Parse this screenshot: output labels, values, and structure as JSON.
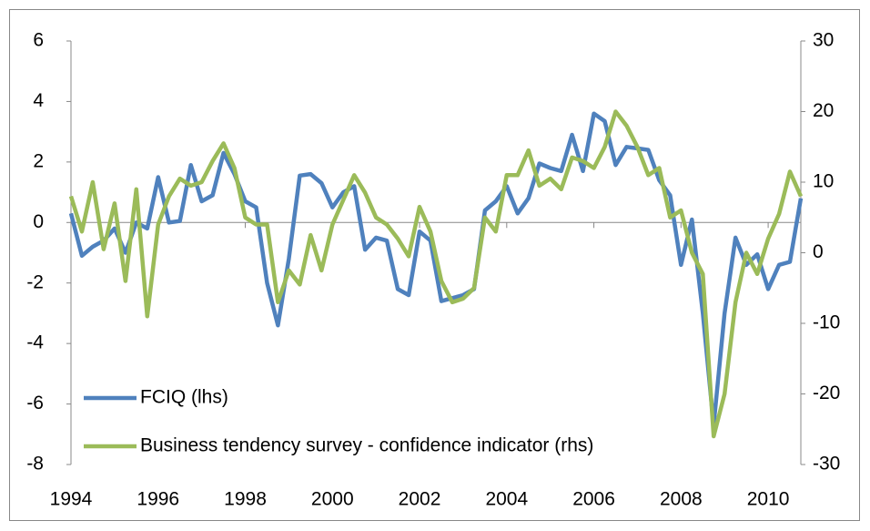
{
  "chart_data": {
    "type": "line",
    "x": [
      1994,
      1994.25,
      1994.5,
      1994.75,
      1995,
      1995.25,
      1995.5,
      1995.75,
      1996,
      1996.25,
      1996.5,
      1996.75,
      1997,
      1997.25,
      1997.5,
      1997.75,
      1998,
      1998.25,
      1998.5,
      1998.75,
      1999,
      1999.25,
      1999.5,
      1999.75,
      2000,
      2000.25,
      2000.5,
      2000.75,
      2001,
      2001.25,
      2001.5,
      2001.75,
      2002,
      2002.25,
      2002.5,
      2002.75,
      2003,
      2003.25,
      2003.5,
      2003.75,
      2004,
      2004.25,
      2004.5,
      2004.75,
      2005,
      2005.25,
      2005.5,
      2005.75,
      2006,
      2006.25,
      2006.5,
      2006.75,
      2007,
      2007.25,
      2007.5,
      2007.75,
      2008,
      2008.25,
      2008.5,
      2008.75,
      2009,
      2009.25,
      2009.5,
      2009.75,
      2010,
      2010.25,
      2010.5,
      2010.75
    ],
    "xlim": [
      1994,
      2010.75
    ],
    "xticks": [
      1994,
      1996,
      1998,
      2000,
      2002,
      2004,
      2006,
      2008,
      2010
    ],
    "ylim": [
      -8,
      6
    ],
    "yticks": [
      -8,
      -6,
      -4,
      -2,
      0,
      2,
      4,
      6
    ],
    "y2lim": [
      -30,
      30
    ],
    "y2ticks": [
      -30,
      -20,
      -10,
      0,
      10,
      20,
      30
    ],
    "series": [
      {
        "name": "FCIQ (lhs)",
        "color": "#4f81bd",
        "values": [
          0.3,
          -1.1,
          -0.8,
          -0.6,
          -0.2,
          -1.0,
          0.0,
          -0.2,
          1.5,
          0.0,
          0.05,
          1.9,
          0.7,
          0.9,
          2.3,
          1.6,
          0.7,
          0.5,
          -2.0,
          -3.4,
          -1.2,
          1.55,
          1.6,
          1.3,
          0.5,
          1.0,
          1.2,
          -0.9,
          -0.5,
          -0.6,
          -2.2,
          -2.4,
          -0.3,
          -0.6,
          -2.6,
          -2.5,
          -2.4,
          -2.2,
          0.4,
          0.7,
          1.2,
          0.3,
          0.8,
          1.95,
          1.8,
          1.7,
          2.9,
          1.7,
          3.6,
          3.35,
          1.9,
          2.5,
          2.45,
          2.4,
          1.4,
          0.9,
          -1.4,
          0.1,
          -3.0,
          -6.7,
          -3.0,
          -0.5,
          -1.4,
          -1.05,
          -2.2,
          -1.4,
          -1.3,
          0.8
        ]
      },
      {
        "name": "Business tendency survey - confidence indicator (rhs)",
        "color": "#9bbb59",
        "axis": "y2",
        "values": [
          8,
          3,
          10,
          0.5,
          7,
          -4,
          9,
          -9,
          4,
          8,
          10.5,
          9.5,
          10,
          13,
          15.5,
          12,
          5,
          4,
          4,
          -7,
          -2.5,
          -4.5,
          2.5,
          -2.5,
          4,
          7.5,
          11,
          8.5,
          5,
          4,
          2,
          -0.5,
          6.5,
          3,
          -4,
          -7,
          -6.5,
          -5,
          5,
          3,
          11,
          11,
          14.5,
          9.5,
          10.5,
          9,
          13.5,
          13,
          12,
          15,
          20,
          18,
          15,
          11,
          12,
          5,
          6,
          0,
          -3,
          -26,
          -20,
          -7,
          0,
          -3,
          2,
          5.5,
          11.5,
          8
        ]
      }
    ],
    "legend": "lower left"
  }
}
